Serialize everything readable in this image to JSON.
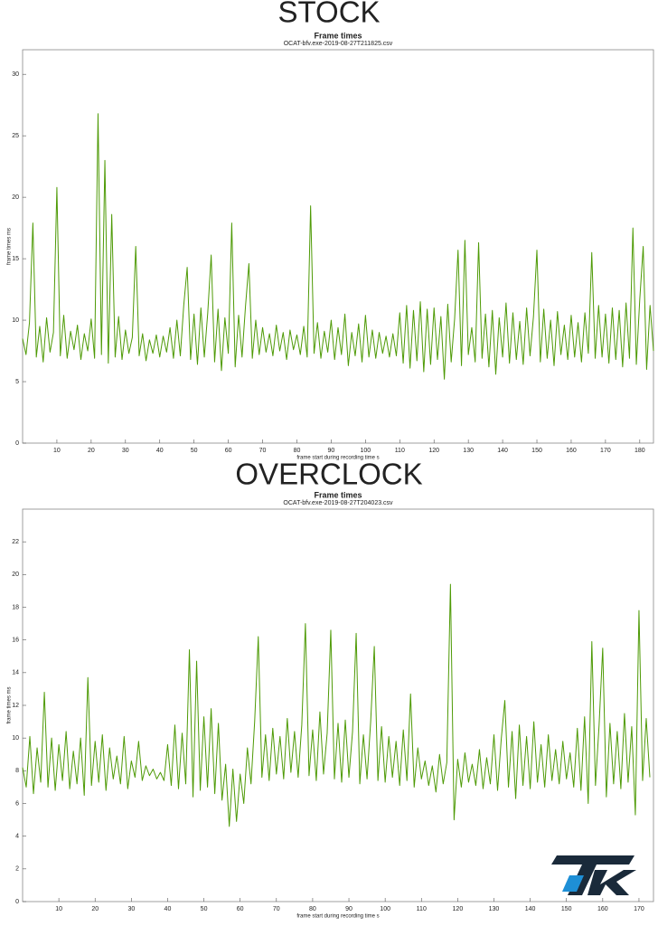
{
  "chart_data": [
    {
      "type": "line",
      "heading": "STOCK",
      "title": "Frame times",
      "subtitle": "OCAT-bfv.exe-2019-08-27T211825.csv",
      "x_label": "frame start during recording time s",
      "y_label": "frame times ms",
      "xlim": [
        0,
        184
      ],
      "ylim": [
        0,
        32
      ],
      "xticks": [
        10,
        20,
        30,
        40,
        50,
        60,
        70,
        80,
        90,
        100,
        110,
        120,
        130,
        140,
        150,
        160,
        170,
        180
      ],
      "yticks": [
        0,
        5,
        10,
        15,
        20,
        25,
        30
      ],
      "series": [
        {
          "name": "frame times",
          "color": "#4e9a06",
          "x": [
            0,
            1,
            2,
            3,
            4,
            5,
            6,
            7,
            8,
            9,
            10,
            11,
            12,
            13,
            14,
            15,
            16,
            17,
            18,
            19,
            20,
            21,
            22,
            23,
            24,
            25,
            26,
            27,
            28,
            29,
            30,
            31,
            32,
            33,
            34,
            35,
            36,
            37,
            38,
            39,
            40,
            41,
            42,
            43,
            44,
            45,
            46,
            47,
            48,
            49,
            50,
            51,
            52,
            53,
            54,
            55,
            56,
            57,
            58,
            59,
            60,
            61,
            62,
            63,
            64,
            65,
            66,
            67,
            68,
            69,
            70,
            71,
            72,
            73,
            74,
            75,
            76,
            77,
            78,
            79,
            80,
            81,
            82,
            83,
            84,
            85,
            86,
            87,
            88,
            89,
            90,
            91,
            92,
            93,
            94,
            95,
            96,
            97,
            98,
            99,
            100,
            101,
            102,
            103,
            104,
            105,
            106,
            107,
            108,
            109,
            110,
            111,
            112,
            113,
            114,
            115,
            116,
            117,
            118,
            119,
            120,
            121,
            122,
            123,
            124,
            125,
            126,
            127,
            128,
            129,
            130,
            131,
            132,
            133,
            134,
            135,
            136,
            137,
            138,
            139,
            140,
            141,
            142,
            143,
            144,
            145,
            146,
            147,
            148,
            149,
            150,
            151,
            152,
            153,
            154,
            155,
            156,
            157,
            158,
            159,
            160,
            161,
            162,
            163,
            164,
            165,
            166,
            167,
            168,
            169,
            170,
            171,
            172,
            173,
            174,
            175,
            176,
            177,
            178,
            179,
            180,
            181,
            182,
            183,
            184
          ],
          "values": [
            8.5,
            7.2,
            9.8,
            17.9,
            7.0,
            9.5,
            6.6,
            10.2,
            7.4,
            9.0,
            20.8,
            7.1,
            10.4,
            6.9,
            9.1,
            7.6,
            9.6,
            6.8,
            8.9,
            7.5,
            10.1,
            6.9,
            26.8,
            7.2,
            23.0,
            6.5,
            18.6,
            7.0,
            10.3,
            6.8,
            9.2,
            7.3,
            8.6,
            16.0,
            7.1,
            8.9,
            6.7,
            8.4,
            7.3,
            8.8,
            7.0,
            8.7,
            7.4,
            9.4,
            6.9,
            10.0,
            7.1,
            11.2,
            14.3,
            6.8,
            10.5,
            6.4,
            11.0,
            7.0,
            10.6,
            15.3,
            6.6,
            10.9,
            5.9,
            10.2,
            7.3,
            17.9,
            6.2,
            10.4,
            7.0,
            11.1,
            14.6,
            6.9,
            10.0,
            7.2,
            9.4,
            7.4,
            8.9,
            7.1,
            9.6,
            7.5,
            9.0,
            6.8,
            9.2,
            7.6,
            8.8,
            7.2,
            9.5,
            7.0,
            19.3,
            7.3,
            9.8,
            6.9,
            9.1,
            7.4,
            10.0,
            6.8,
            9.4,
            7.2,
            10.5,
            6.3,
            9.0,
            7.1,
            9.7,
            6.6,
            10.4,
            7.0,
            9.2,
            6.9,
            9.0,
            7.3,
            8.7,
            7.0,
            8.9,
            7.1,
            10.6,
            6.5,
            11.2,
            6.1,
            10.8,
            6.7,
            11.5,
            5.8,
            10.9,
            6.4,
            11.0,
            6.8,
            10.3,
            5.2,
            11.3,
            6.6,
            10.1,
            15.7,
            6.3,
            16.5,
            7.2,
            9.4,
            6.6,
            16.3,
            6.9,
            10.5,
            6.2,
            10.8,
            5.6,
            10.2,
            7.0,
            11.4,
            6.5,
            10.6,
            6.8,
            9.9,
            6.4,
            11.0,
            7.1,
            10.3,
            15.7,
            6.6,
            10.9,
            6.9,
            10.0,
            6.3,
            10.7,
            7.2,
            9.6,
            6.8,
            10.4,
            7.0,
            9.8,
            6.6,
            10.6,
            7.3,
            15.5,
            6.9,
            11.2,
            7.0,
            10.5,
            6.5,
            11.0,
            6.8,
            10.8,
            6.2,
            11.4,
            6.9,
            17.5,
            6.4,
            11.7,
            16.0,
            6.0,
            11.2,
            7.5
          ]
        }
      ]
    },
    {
      "type": "line",
      "heading": "OVERCLOCK",
      "title": "Frame times",
      "subtitle": "OCAT-bfv.exe-2019-08-27T204023.csv",
      "x_label": "frame start during recording time s",
      "y_label": "frame times ms",
      "xlim": [
        0,
        174
      ],
      "ylim": [
        0,
        24
      ],
      "xticks": [
        10,
        20,
        30,
        40,
        50,
        60,
        70,
        80,
        90,
        100,
        110,
        120,
        130,
        140,
        150,
        160,
        170
      ],
      "yticks": [
        0,
        2,
        4,
        6,
        8,
        10,
        12,
        14,
        16,
        18,
        20,
        22
      ],
      "series": [
        {
          "name": "frame times",
          "color": "#4e9a06",
          "x": [
            0,
            1,
            2,
            3,
            4,
            5,
            6,
            7,
            8,
            9,
            10,
            11,
            12,
            13,
            14,
            15,
            16,
            17,
            18,
            19,
            20,
            21,
            22,
            23,
            24,
            25,
            26,
            27,
            28,
            29,
            30,
            31,
            32,
            33,
            34,
            35,
            36,
            37,
            38,
            39,
            40,
            41,
            42,
            43,
            44,
            45,
            46,
            47,
            48,
            49,
            50,
            51,
            52,
            53,
            54,
            55,
            56,
            57,
            58,
            59,
            60,
            61,
            62,
            63,
            64,
            65,
            66,
            67,
            68,
            69,
            70,
            71,
            72,
            73,
            74,
            75,
            76,
            77,
            78,
            79,
            80,
            81,
            82,
            83,
            84,
            85,
            86,
            87,
            88,
            89,
            90,
            91,
            92,
            93,
            94,
            95,
            96,
            97,
            98,
            99,
            100,
            101,
            102,
            103,
            104,
            105,
            106,
            107,
            108,
            109,
            110,
            111,
            112,
            113,
            114,
            115,
            116,
            117,
            118,
            119,
            120,
            121,
            122,
            123,
            124,
            125,
            126,
            127,
            128,
            129,
            130,
            131,
            132,
            133,
            134,
            135,
            136,
            137,
            138,
            139,
            140,
            141,
            142,
            143,
            144,
            145,
            146,
            147,
            148,
            149,
            150,
            151,
            152,
            153,
            154,
            155,
            156,
            157,
            158,
            159,
            160,
            161,
            162,
            163,
            164,
            165,
            166,
            167,
            168,
            169,
            170,
            171,
            172,
            173
          ],
          "values": [
            8.2,
            7.0,
            10.1,
            6.6,
            9.4,
            7.3,
            12.8,
            7.0,
            10.0,
            6.8,
            9.6,
            7.4,
            10.4,
            6.9,
            9.2,
            7.2,
            10.0,
            6.5,
            13.7,
            7.1,
            9.8,
            7.3,
            10.2,
            6.8,
            9.4,
            7.5,
            8.9,
            7.2,
            10.1,
            6.9,
            8.6,
            7.6,
            9.8,
            7.4,
            8.3,
            7.7,
            8.1,
            7.5,
            7.9,
            7.4,
            9.6,
            7.1,
            10.8,
            6.9,
            10.3,
            7.2,
            15.4,
            6.4,
            14.7,
            6.8,
            11.3,
            7.0,
            11.8,
            6.6,
            10.9,
            6.2,
            8.4,
            4.6,
            8.1,
            4.9,
            7.8,
            6.0,
            9.4,
            7.2,
            11.0,
            16.2,
            7.6,
            10.2,
            7.4,
            10.6,
            7.8,
            10.1,
            7.5,
            11.2,
            7.9,
            10.4,
            7.6,
            10.8,
            17.0,
            7.7,
            10.5,
            7.4,
            11.6,
            7.8,
            10.3,
            16.6,
            7.5,
            10.9,
            7.3,
            11.1,
            7.6,
            10.4,
            16.4,
            7.2,
            10.2,
            7.5,
            11.0,
            15.6,
            7.4,
            10.7,
            7.3,
            10.1,
            7.6,
            9.8,
            7.1,
            10.5,
            7.4,
            12.7,
            7.0,
            9.4,
            7.5,
            8.6,
            7.1,
            8.3,
            6.7,
            9.0,
            7.2,
            8.5,
            19.4,
            5.0,
            8.7,
            7.0,
            9.1,
            7.3,
            8.4,
            7.1,
            9.3,
            6.9,
            8.8,
            7.2,
            10.2,
            6.8,
            9.9,
            12.3,
            7.0,
            10.4,
            6.3,
            10.8,
            7.1,
            10.1,
            6.9,
            11.0,
            7.3,
            9.6,
            7.0,
            10.2,
            7.4,
            9.3,
            7.2,
            9.8,
            7.5,
            9.1,
            7.0,
            10.6,
            6.8,
            11.3,
            6.0,
            15.9,
            7.1,
            10.8,
            15.5,
            6.4,
            10.9,
            7.2,
            10.4,
            6.9,
            11.5,
            7.3,
            10.7,
            5.3,
            17.8,
            7.4,
            11.2,
            7.6
          ]
        }
      ]
    }
  ]
}
